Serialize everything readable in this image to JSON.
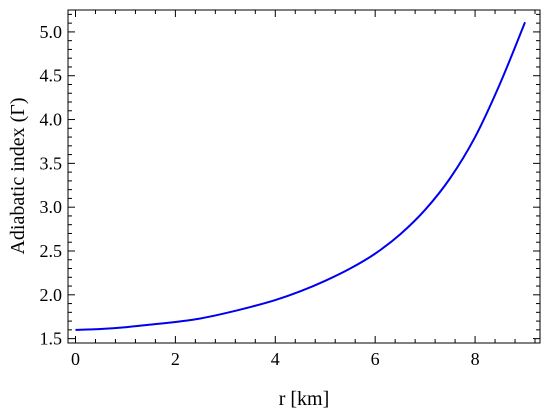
{
  "chart_data": {
    "type": "line",
    "title": "",
    "xlabel": "r [km]",
    "ylabel": "Adiabatic index (Γ)",
    "xlim": [
      -0.15,
      9.3
    ],
    "ylim": [
      1.45,
      5.25
    ],
    "x_ticks": [
      0,
      2,
      4,
      6,
      8
    ],
    "x_tick_labels": [
      "0",
      "2",
      "4",
      "6",
      "8"
    ],
    "y_ticks": [
      1.5,
      2.0,
      2.5,
      3.0,
      3.5,
      4.0,
      4.5,
      5.0
    ],
    "y_tick_labels": [
      "1.5",
      "2.0",
      "2.5",
      "3.0",
      "3.5",
      "4.0",
      "4.5",
      "5.0"
    ],
    "grid": false,
    "series": [
      {
        "color": "#0000ee",
        "x": [
          0,
          0.5,
          1,
          1.5,
          2,
          2.5,
          3,
          3.5,
          4,
          4.5,
          5,
          5.5,
          6,
          6.5,
          7,
          7.5,
          8,
          8.5,
          9
        ],
        "y": [
          1.6,
          1.61,
          1.63,
          1.66,
          1.69,
          1.73,
          1.79,
          1.86,
          1.94,
          2.04,
          2.16,
          2.3,
          2.47,
          2.69,
          2.97,
          3.33,
          3.8,
          4.41,
          5.11
        ]
      }
    ]
  }
}
